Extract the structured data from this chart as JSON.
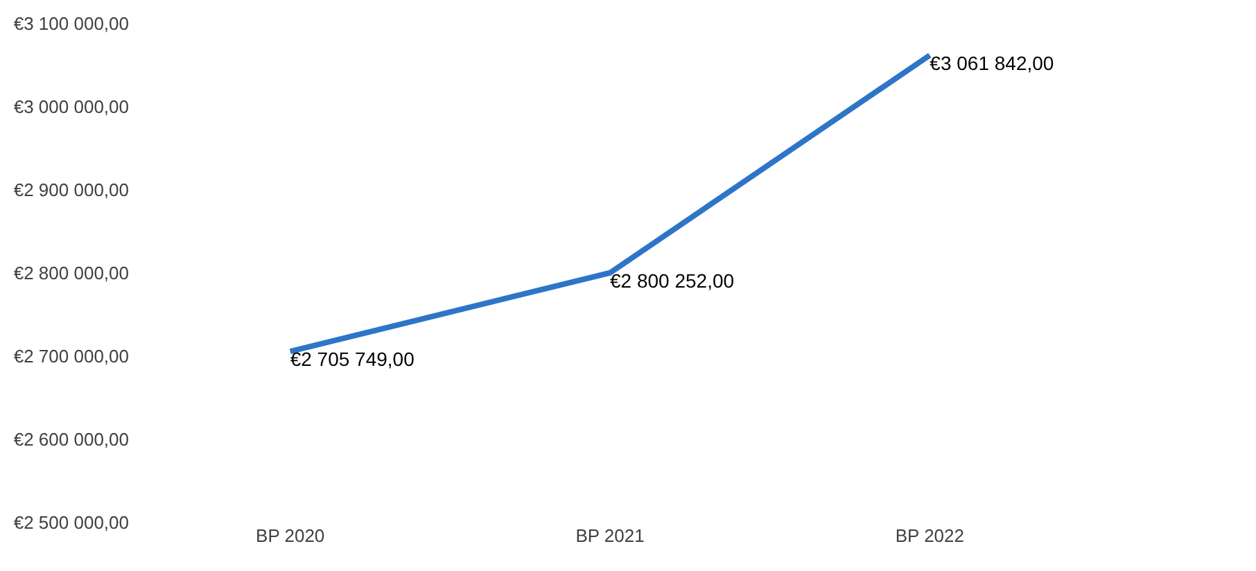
{
  "chart_data": {
    "type": "line",
    "categories": [
      "BP 2020",
      "BP 2021",
      "BP 2022"
    ],
    "series": [
      {
        "color": "#2e75c8",
        "values": [
          2705749,
          2800252,
          3061842
        ],
        "value_labels": [
          "€2 705 749,00",
          "€2 800 252,00",
          "€3 061 842,00"
        ]
      }
    ],
    "ylim": [
      2500000,
      3100000
    ],
    "yticks": [
      {
        "value": 2500000,
        "label": "€2 500 000,00"
      },
      {
        "value": 2600000,
        "label": "€2 600 000,00"
      },
      {
        "value": 2700000,
        "label": "€2 700 000,00"
      },
      {
        "value": 2800000,
        "label": "€2 800 000,00"
      },
      {
        "value": 2900000,
        "label": "€2 900 000,00"
      },
      {
        "value": 3000000,
        "label": "€3 000 000,00"
      },
      {
        "value": 3100000,
        "label": "€3 100 000,00"
      }
    ],
    "grid": false,
    "legend": false,
    "marker": "none",
    "line_style": "solid"
  }
}
